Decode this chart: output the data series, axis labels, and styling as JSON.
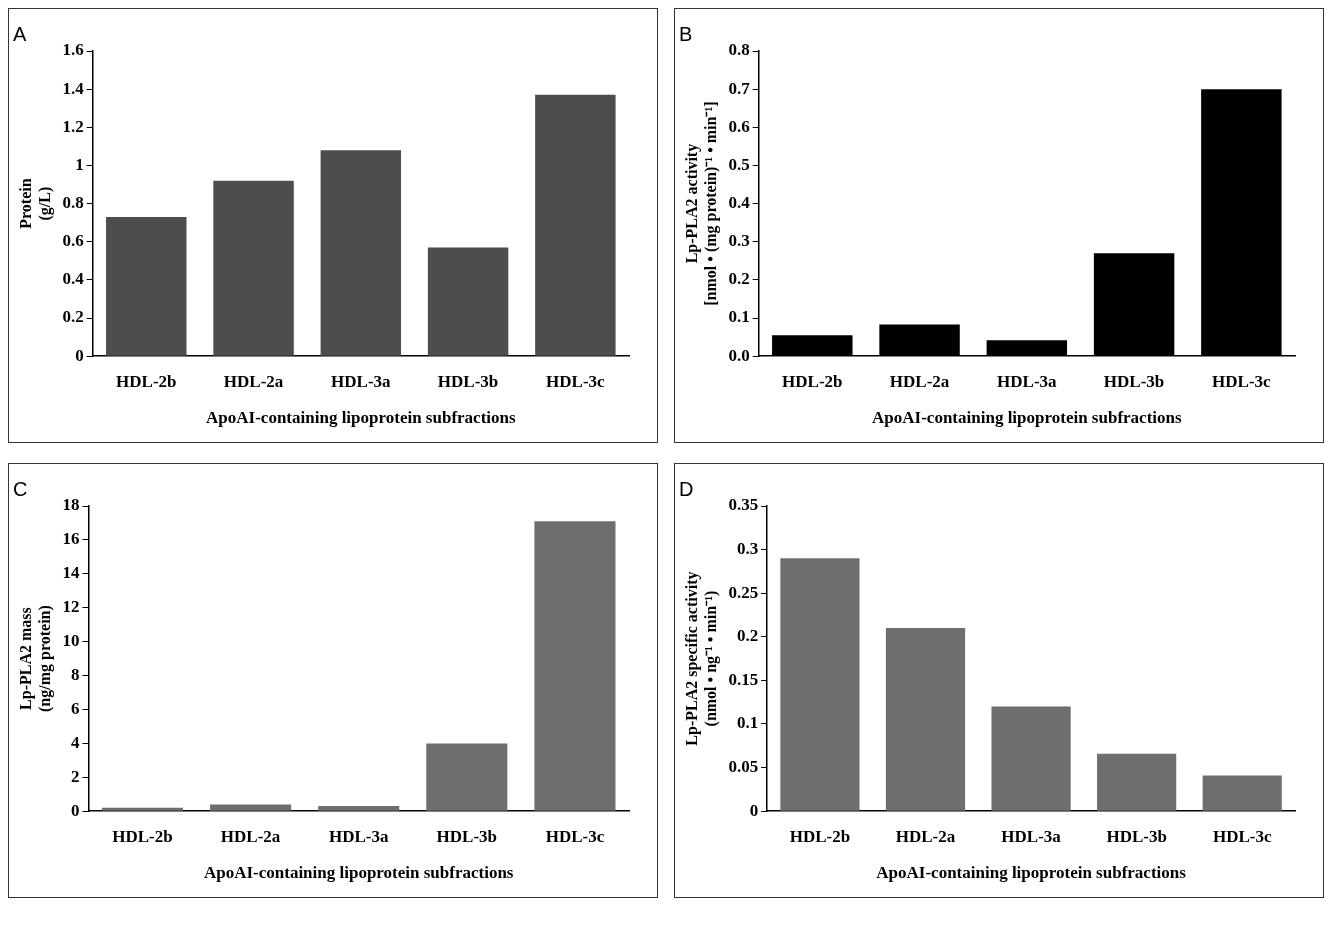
{
  "chart_data": [
    {
      "type": "bar",
      "title": "A",
      "xlabel": "ApoAI-containing lipoprotein subfractions",
      "ylabel": "Protein\n(g/L)",
      "categories": [
        "HDL-2b",
        "HDL-2a",
        "HDL-3a",
        "HDL-3b",
        "HDL-3c"
      ],
      "values": [
        0.73,
        0.92,
        1.08,
        0.57,
        1.37
      ],
      "color": "#4d4d4d",
      "ylim": [
        0,
        1.6
      ],
      "yticks": [
        0,
        0.2,
        0.4,
        0.6,
        0.8,
        1,
        1.2,
        1.4,
        1.6
      ],
      "grid": false
    },
    {
      "type": "bar",
      "title": "B",
      "xlabel": "ApoAI-containing lipoprotein subfractions",
      "ylabel": "Lp-PLA2 activity\n[nmol • (mg protein)⁻¹ • min⁻¹]",
      "categories": [
        "HDL-2b",
        "HDL-2a",
        "HDL-3a",
        "HDL-3b",
        "HDL-3c"
      ],
      "values": [
        0.055,
        0.083,
        0.042,
        0.27,
        0.7
      ],
      "color": "#000000",
      "ylim": [
        0,
        0.8
      ],
      "yticks": [
        {
          "value": 0,
          "label": "0.0"
        },
        0.1,
        0.2,
        0.3,
        0.4,
        0.5,
        0.6,
        0.7,
        0.8
      ],
      "grid": false
    },
    {
      "type": "bar",
      "title": "C",
      "xlabel": "ApoAI-containing lipoprotein subfractions",
      "ylabel": "Lp-PLA2 mass\n(ng/mg protein)",
      "categories": [
        "HDL-2b",
        "HDL-2a",
        "HDL-3a",
        "HDL-3b",
        "HDL-3c"
      ],
      "values": [
        0.2,
        0.4,
        0.3,
        4.0,
        17.1
      ],
      "color": "#6e6e6e",
      "ylim": [
        0,
        18
      ],
      "yticks": [
        0,
        2,
        4,
        6,
        8,
        10,
        12,
        14,
        16,
        18
      ],
      "grid": false
    },
    {
      "type": "bar",
      "title": "D",
      "xlabel": "ApoAI-containing lipoprotein subfractions",
      "ylabel": "Lp-PLA2 specific activity\n(nmol • ng⁻¹ • min⁻¹)",
      "categories": [
        "HDL-2b",
        "HDL-2a",
        "HDL-3a",
        "HDL-3b",
        "HDL-3c"
      ],
      "values": [
        0.29,
        0.21,
        0.12,
        0.066,
        0.041
      ],
      "color": "#6e6e6e",
      "ylim": [
        0,
        0.35
      ],
      "yticks": [
        0,
        0.05,
        0.1,
        0.15,
        0.2,
        0.25,
        0.3,
        0.35
      ],
      "grid": false
    }
  ]
}
